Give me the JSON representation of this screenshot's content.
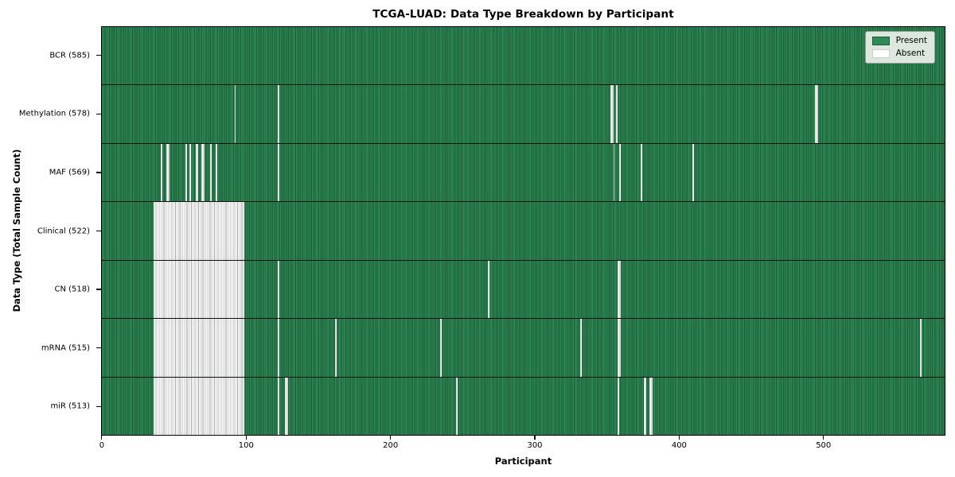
{
  "colors": {
    "present_face": "#2e8b57",
    "present_edge": "#1c5937",
    "absent_face": "#ffffff",
    "absent_edge": "#ababab",
    "legend_background": "#eaf0e9",
    "legend_border": "#9b9b9b"
  },
  "chart_data": {
    "type": "heatmap",
    "title": "TCGA-LUAD: Data Type Breakdown by Participant",
    "xlabel": "Participant",
    "ylabel": "Data Type (Total Sample Count)",
    "x_ticks": [
      0,
      100,
      200,
      300,
      400,
      500
    ],
    "n_participants": 585,
    "xlim": [
      0,
      585
    ],
    "grid": false,
    "cell_states": {
      "present_color": "#2e8b57",
      "absent_color": "#ffffff"
    },
    "legend": {
      "position": "upper right",
      "entries": [
        {
          "label": "Present",
          "color": "#2e8b57"
        },
        {
          "label": "Absent",
          "color": "#ffffff"
        }
      ]
    },
    "rows": [
      {
        "label": "BCR (585)",
        "data_type": "BCR",
        "present_count": 585,
        "absent_count": 0,
        "absent_ranges": []
      },
      {
        "label": "Methylation (578)",
        "data_type": "Methylation",
        "present_count": 578,
        "absent_count": 7,
        "absent_ranges": [
          [
            92,
            92
          ],
          [
            122,
            122
          ],
          [
            353,
            354
          ],
          [
            357,
            357
          ],
          [
            495,
            496
          ]
        ]
      },
      {
        "label": "MAF (569)",
        "data_type": "MAF",
        "present_count": 569,
        "absent_count": 16,
        "absent_ranges": [
          [
            41,
            41
          ],
          [
            45,
            46
          ],
          [
            58,
            58
          ],
          [
            61,
            61
          ],
          [
            65,
            66
          ],
          [
            69,
            70
          ],
          [
            75,
            75
          ],
          [
            79,
            79
          ],
          [
            122,
            122
          ],
          [
            355,
            355
          ],
          [
            359,
            359
          ],
          [
            374,
            374
          ],
          [
            410,
            410
          ]
        ]
      },
      {
        "label": "Clinical (522)",
        "data_type": "Clinical",
        "present_count": 522,
        "absent_count": 63,
        "absent_ranges": [
          [
            36,
            98
          ]
        ]
      },
      {
        "label": "CN (518)",
        "data_type": "CN",
        "present_count": 518,
        "absent_count": 67,
        "absent_ranges": [
          [
            36,
            98
          ],
          [
            122,
            122
          ],
          [
            268,
            268
          ],
          [
            358,
            359
          ]
        ]
      },
      {
        "label": "mRNA (515)",
        "data_type": "mRNA",
        "present_count": 515,
        "absent_count": 70,
        "absent_ranges": [
          [
            36,
            98
          ],
          [
            122,
            122
          ],
          [
            162,
            162
          ],
          [
            235,
            235
          ],
          [
            332,
            332
          ],
          [
            358,
            359
          ],
          [
            568,
            568
          ]
        ]
      },
      {
        "label": "miR (513)",
        "data_type": "miR",
        "present_count": 513,
        "absent_count": 72,
        "absent_ranges": [
          [
            36,
            98
          ],
          [
            122,
            122
          ],
          [
            127,
            128
          ],
          [
            246,
            246
          ],
          [
            358,
            358
          ],
          [
            376,
            377
          ],
          [
            380,
            381
          ]
        ]
      }
    ]
  }
}
